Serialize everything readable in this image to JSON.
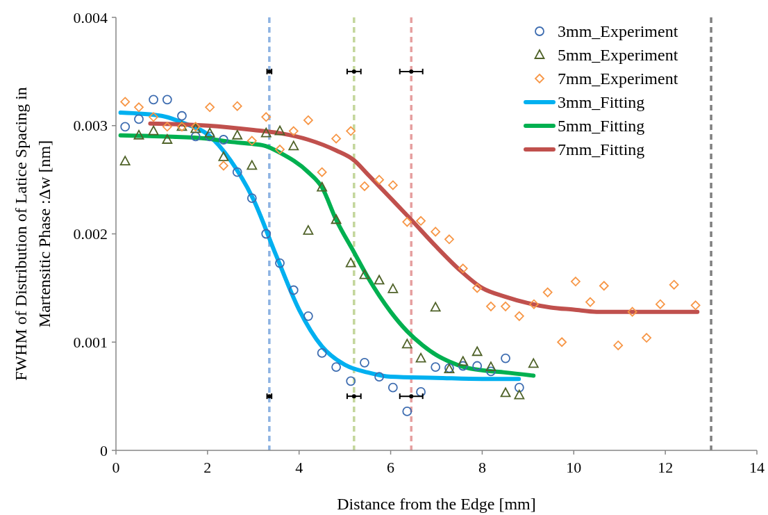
{
  "chart_data": {
    "type": "scatter",
    "xlabel": "Distance from the Edge [mm]",
    "ylabel": "FWHM of Distribution of Latice Spacing in Martensitic Phase :Δw [nm]",
    "xlim": [
      0,
      14
    ],
    "xticks": [
      0,
      2,
      4,
      6,
      8,
      10,
      12,
      14
    ],
    "ylim": [
      0,
      0.004
    ],
    "yticks": [
      0,
      0.001,
      0.002,
      0.003,
      0.004
    ],
    "grid": false,
    "legend": "top right",
    "series": [
      {
        "name": "3mm_Experiment",
        "marker": "circle",
        "color": "#3d6cb0",
        "x": [
          0.2,
          0.5,
          0.82,
          1.12,
          1.44,
          1.74,
          2.05,
          2.35,
          2.65,
          2.97,
          3.28,
          3.58,
          3.88,
          4.2,
          4.5,
          4.81,
          5.13,
          5.43,
          5.75,
          6.05,
          6.36,
          6.66,
          6.98,
          7.28,
          7.58,
          7.89,
          8.19,
          8.51,
          8.81
        ],
        "values": [
          0.00299,
          0.00306,
          0.00324,
          0.00324,
          0.00309,
          0.0029,
          0.0029,
          0.00287,
          0.00257,
          0.00233,
          0.002,
          0.00173,
          0.00148,
          0.00124,
          0.0009,
          0.00077,
          0.00064,
          0.00081,
          0.00068,
          0.00058,
          0.00036,
          0.00054,
          0.00077,
          0.00076,
          0.00078,
          0.00078,
          0.00073,
          0.00085,
          0.00058
        ]
      },
      {
        "name": "5mm_Experiment",
        "marker": "triangle",
        "color": "#4f6228",
        "x": [
          0.2,
          0.5,
          0.82,
          1.12,
          1.44,
          1.74,
          2.05,
          2.35,
          2.65,
          2.97,
          3.28,
          3.58,
          3.88,
          4.2,
          4.5,
          4.81,
          5.13,
          5.43,
          5.75,
          6.05,
          6.36,
          6.66,
          6.98,
          7.28,
          7.58,
          7.89,
          8.19,
          8.51,
          8.81,
          9.12
        ],
        "values": [
          0.00267,
          0.00291,
          0.00295,
          0.00287,
          0.00299,
          0.00297,
          0.00293,
          0.00271,
          0.00291,
          0.00263,
          0.00293,
          0.00295,
          0.00281,
          0.00203,
          0.00243,
          0.00213,
          0.00173,
          0.00162,
          0.00157,
          0.00149,
          0.00098,
          0.00085,
          0.00132,
          0.00075,
          0.00082,
          0.00091,
          0.00077,
          0.00053,
          0.00051,
          0.0008
        ]
      },
      {
        "name": "7mm_Experiment",
        "marker": "diamond",
        "color": "#f79646",
        "x": [
          0.2,
          0.5,
          0.82,
          1.12,
          1.44,
          1.74,
          2.05,
          2.35,
          2.65,
          2.97,
          3.28,
          3.58,
          3.88,
          4.2,
          4.5,
          4.81,
          5.13,
          5.43,
          5.75,
          6.05,
          6.36,
          6.66,
          6.98,
          7.28,
          7.58,
          7.89,
          8.19,
          8.51,
          8.81,
          9.13,
          9.43,
          9.74,
          10.04,
          10.36,
          10.66,
          10.97,
          11.28,
          11.59,
          11.89,
          12.19,
          12.66
        ],
        "values": [
          0.00322,
          0.00317,
          0.00308,
          0.00299,
          0.00299,
          0.00299,
          0.00317,
          0.00263,
          0.00318,
          0.00286,
          0.00308,
          0.00278,
          0.00295,
          0.00305,
          0.00257,
          0.00288,
          0.00295,
          0.00244,
          0.0025,
          0.00245,
          0.00211,
          0.00212,
          0.00202,
          0.00195,
          0.00168,
          0.0015,
          0.00133,
          0.00133,
          0.00124,
          0.00135,
          0.00146,
          0.001,
          0.00156,
          0.00137,
          0.00152,
          0.00097,
          0.00128,
          0.00104,
          0.00135,
          0.00153,
          0.00134
        ]
      },
      {
        "name": "3mm_Fitting",
        "type": "line",
        "marker": "none",
        "color": "#00b0f0",
        "x": [
          0.1,
          1,
          1.5,
          2,
          2.5,
          3,
          3.5,
          4,
          4.5,
          5,
          5.5,
          6,
          7,
          8,
          8.8
        ],
        "values": [
          0.00312,
          0.00309,
          0.00302,
          0.00292,
          0.00268,
          0.00232,
          0.0018,
          0.0013,
          0.00096,
          0.00079,
          0.00072,
          0.00068,
          0.00067,
          0.00066,
          0.00066
        ]
      },
      {
        "name": "5mm_Fitting",
        "type": "line",
        "marker": "none",
        "color": "#00b050",
        "x": [
          0.1,
          1,
          2,
          2.5,
          3,
          3.28,
          3.58,
          4.2,
          4.5,
          4.81,
          5.2,
          5.5,
          6,
          6.36,
          6.7,
          7,
          7.28,
          7.6,
          8,
          8.5,
          9.12
        ],
        "values": [
          0.00291,
          0.0029,
          0.00288,
          0.00285,
          0.00283,
          0.00281,
          0.00275,
          0.00257,
          0.00243,
          0.00213,
          0.00183,
          0.0016,
          0.00128,
          0.0011,
          0.00097,
          0.00088,
          0.00082,
          0.00077,
          0.00074,
          0.00072,
          0.00069
        ]
      },
      {
        "name": "7mm_Fitting",
        "type": "line",
        "marker": "none",
        "color": "#c0504d",
        "x": [
          0.75,
          2,
          3,
          3.58,
          4.2,
          4.81,
          5.2,
          5.5,
          6,
          6.45,
          7,
          7.5,
          8,
          8.5,
          9,
          9.5,
          10,
          10.5,
          11,
          12.7
        ],
        "values": [
          0.00302,
          0.003,
          0.00296,
          0.00293,
          0.00287,
          0.00277,
          0.00268,
          0.00255,
          0.00233,
          0.00213,
          0.00188,
          0.00167,
          0.0015,
          0.00142,
          0.00136,
          0.00132,
          0.0013,
          0.00128,
          0.00128,
          0.00128
        ]
      },
      {
        "color": "#000000",
        "x": [
          3.35,
          3.35,
          5.2,
          5.2,
          6.45,
          6.45
        ],
        "values": [
          0.0035,
          0.0005,
          0.0035,
          0.0005,
          0.0035,
          0.0005
        ],
        "xerrors": [
          0.05,
          0.05,
          0.15,
          0.15,
          0.25,
          0.25
        ]
      }
    ],
    "ref_lines": [
      {
        "axis": "x",
        "value": 3.35,
        "color": "#8db3e2",
        "line_style": "dashed"
      },
      {
        "axis": "x",
        "value": 5.2,
        "color": "#c3d69b",
        "line_style": "dashed"
      },
      {
        "axis": "x",
        "value": 6.45,
        "color": "#e6a0a0",
        "line_style": "dashed"
      },
      {
        "axis": "x",
        "value": 13,
        "color": "#808080",
        "line_style": "dashed"
      }
    ]
  }
}
